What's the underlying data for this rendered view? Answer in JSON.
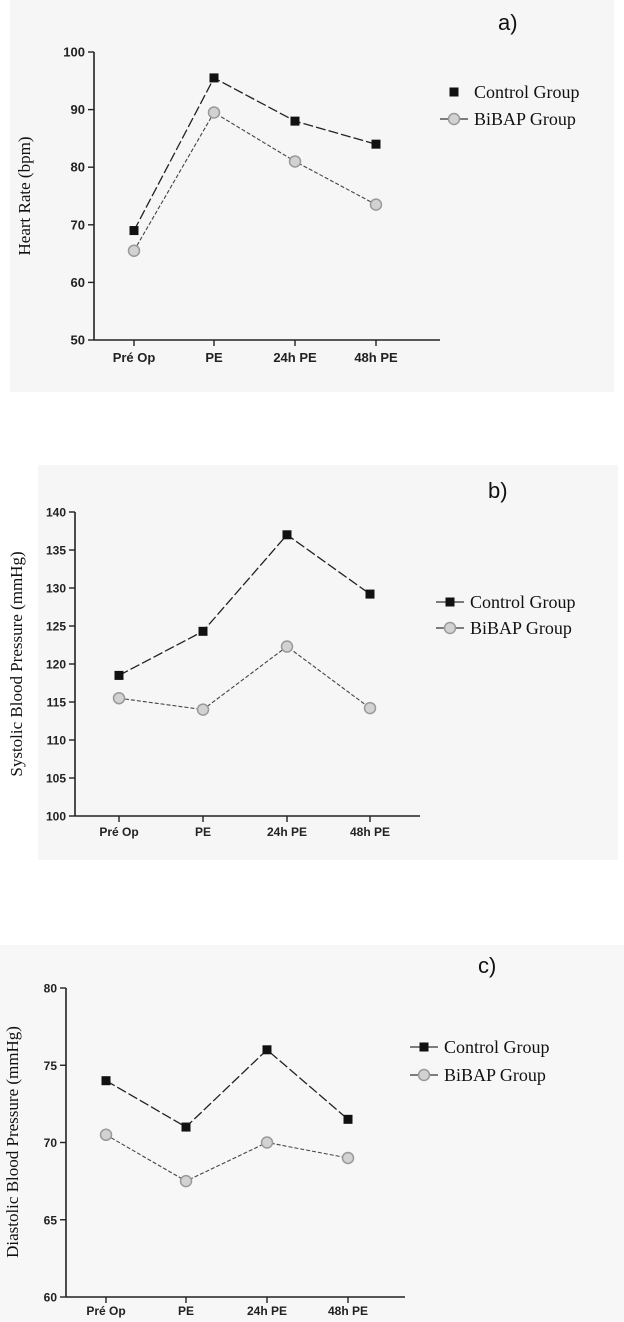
{
  "figure": {
    "panels": [
      {
        "letter": "a)"
      },
      {
        "letter": "b)"
      },
      {
        "letter": "c)"
      }
    ]
  },
  "chart_data": [
    {
      "type": "line",
      "panel_label": "a)",
      "title": "",
      "xlabel": "",
      "ylabel": "Heart Rate (bpm)",
      "categories": [
        "Pré Op",
        "PE",
        "24h PE",
        "48h PE"
      ],
      "ylim": [
        50,
        100
      ],
      "yticks": [
        50,
        60,
        70,
        80,
        90,
        100
      ],
      "grid": false,
      "legend_position": "right",
      "series": [
        {
          "name": "Control Group",
          "marker": "square",
          "color": "#111111",
          "values": [
            69,
            95.5,
            88,
            84
          ]
        },
        {
          "name": "BiBAP Group",
          "marker": "circle",
          "color": "#9a9a9a",
          "values": [
            65.5,
            89.5,
            81,
            73.5
          ]
        }
      ]
    },
    {
      "type": "line",
      "panel_label": "b)",
      "title": "",
      "xlabel": "",
      "ylabel": "Systolic Blood Pressure (mmHg)",
      "categories": [
        "Pré Op",
        "PE",
        "24h PE",
        "48h PE"
      ],
      "ylim": [
        100,
        140
      ],
      "yticks": [
        100,
        105,
        110,
        115,
        120,
        125,
        130,
        135,
        140
      ],
      "grid": false,
      "legend_position": "right",
      "series": [
        {
          "name": "Control Group",
          "marker": "square",
          "color": "#111111",
          "values": [
            118.5,
            124.3,
            137,
            129.2
          ]
        },
        {
          "name": "BiBAP Group",
          "marker": "circle",
          "color": "#9a9a9a",
          "values": [
            115.5,
            114,
            122.3,
            114.2
          ]
        }
      ]
    },
    {
      "type": "line",
      "panel_label": "c)",
      "title": "",
      "xlabel": "",
      "ylabel": "Diastolic Blood Pressure (mmHg)",
      "categories": [
        "Pré Op",
        "PE",
        "24h PE",
        "48h PE"
      ],
      "ylim": [
        60,
        80
      ],
      "yticks": [
        60,
        65,
        70,
        75,
        80
      ],
      "grid": false,
      "legend_position": "right",
      "series": [
        {
          "name": "Control Group",
          "marker": "square",
          "color": "#111111",
          "values": [
            74,
            71,
            76,
            71.5
          ]
        },
        {
          "name": "BiBAP Group",
          "marker": "circle",
          "color": "#9a9a9a",
          "values": [
            70.5,
            67.5,
            70,
            69
          ]
        }
      ]
    }
  ]
}
